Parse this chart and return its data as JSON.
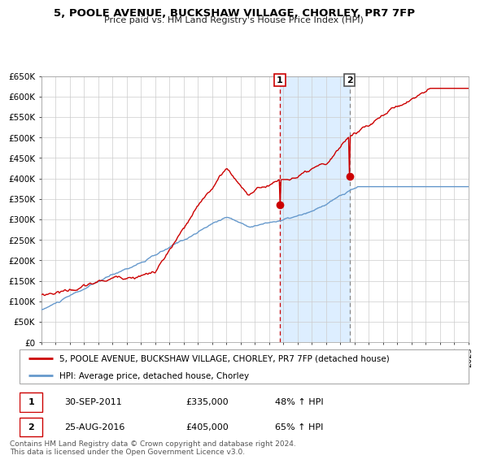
{
  "title": "5, POOLE AVENUE, BUCKSHAW VILLAGE, CHORLEY, PR7 7FP",
  "subtitle": "Price paid vs. HM Land Registry's House Price Index (HPI)",
  "hpi_label": "HPI: Average price, detached house, Chorley",
  "property_label": "5, POOLE AVENUE, BUCKSHAW VILLAGE, CHORLEY, PR7 7FP (detached house)",
  "sale1_date": "30-SEP-2011",
  "sale1_price": 335000,
  "sale1_hpi": "48% ↑ HPI",
  "sale1_year": 2011.75,
  "sale2_date": "25-AUG-2016",
  "sale2_price": 405000,
  "sale2_hpi": "65% ↑ HPI",
  "sale2_year": 2016.65,
  "xmin": 1995,
  "xmax": 2025,
  "ymin": 0,
  "ymax": 650000,
  "yticks": [
    0,
    50000,
    100000,
    150000,
    200000,
    250000,
    300000,
    350000,
    400000,
    450000,
    500000,
    550000,
    600000,
    650000
  ],
  "ytick_labels": [
    "£0",
    "£50K",
    "£100K",
    "£150K",
    "£200K",
    "£250K",
    "£300K",
    "£350K",
    "£400K",
    "£450K",
    "£500K",
    "£550K",
    "£600K",
    "£650K"
  ],
  "property_color": "#cc0000",
  "hpi_color": "#6699cc",
  "shaded_region_color": "#ddeeff",
  "badge1_color": "#cc0000",
  "badge2_color": "#555555",
  "footnote": "Contains HM Land Registry data © Crown copyright and database right 2024.\nThis data is licensed under the Open Government Licence v3.0."
}
